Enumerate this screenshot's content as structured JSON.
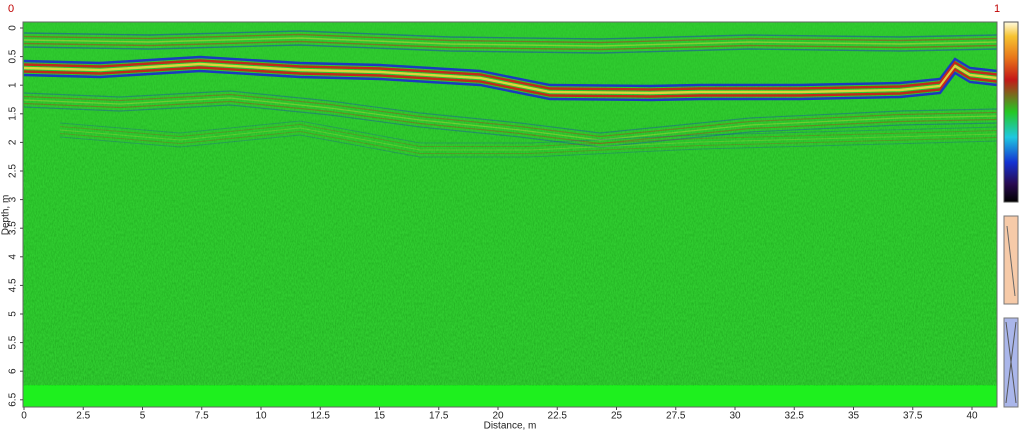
{
  "markers": {
    "left": "0",
    "right": "1"
  },
  "x_axis": {
    "label": "Distance, m",
    "ticks": [
      0,
      2.5,
      5,
      7.5,
      10,
      12.5,
      15,
      17.5,
      20,
      22.5,
      25,
      27.5,
      30,
      32.5,
      35,
      37.5,
      40
    ]
  },
  "y_axis": {
    "label": "Depth, m",
    "ticks": [
      0,
      0.5,
      1,
      1.5,
      2,
      2.5,
      3,
      3.5,
      4,
      4.5,
      5,
      5.5,
      6,
      6.5
    ]
  }
}
